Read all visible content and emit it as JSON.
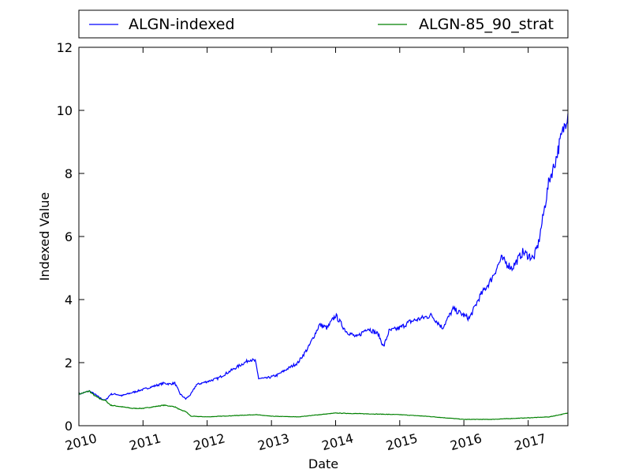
{
  "chart_data": {
    "type": "line",
    "xlabel": "Date",
    "ylabel": "Indexed Value",
    "xlim": [
      "2010-01-01",
      "2017-08-15"
    ],
    "ylim": [
      0,
      12
    ],
    "x_tick_labels": [
      "2010",
      "2011",
      "2012",
      "2013",
      "2014",
      "2015",
      "2016",
      "2017"
    ],
    "y_tick_values": [
      0,
      2,
      4,
      6,
      8,
      10,
      12
    ],
    "legend_position": "top-outside",
    "grid": false,
    "series": [
      {
        "name": "ALGN-indexed",
        "color": "#0000ff",
        "points": [
          [
            "2010-01-01",
            1.0
          ],
          [
            "2010-02-01",
            1.05
          ],
          [
            "2010-03-01",
            1.1
          ],
          [
            "2010-04-01",
            1.0
          ],
          [
            "2010-05-01",
            0.88
          ],
          [
            "2010-06-01",
            0.8
          ],
          [
            "2010-07-01",
            1.0
          ],
          [
            "2010-08-01",
            1.0
          ],
          [
            "2010-09-01",
            0.95
          ],
          [
            "2010-10-01",
            1.0
          ],
          [
            "2010-11-01",
            1.05
          ],
          [
            "2010-12-01",
            1.1
          ],
          [
            "2011-01-01",
            1.15
          ],
          [
            "2011-02-01",
            1.2
          ],
          [
            "2011-03-01",
            1.25
          ],
          [
            "2011-04-01",
            1.3
          ],
          [
            "2011-05-01",
            1.35
          ],
          [
            "2011-06-01",
            1.32
          ],
          [
            "2011-07-01",
            1.35
          ],
          [
            "2011-08-01",
            1.0
          ],
          [
            "2011-09-01",
            0.85
          ],
          [
            "2011-10-01",
            1.0
          ],
          [
            "2011-11-01",
            1.3
          ],
          [
            "2011-12-01",
            1.35
          ],
          [
            "2012-01-01",
            1.4
          ],
          [
            "2012-03-01",
            1.5
          ],
          [
            "2012-05-01",
            1.7
          ],
          [
            "2012-07-01",
            1.9
          ],
          [
            "2012-09-01",
            2.1
          ],
          [
            "2012-10-01",
            2.05
          ],
          [
            "2012-10-20",
            1.5
          ],
          [
            "2012-12-01",
            1.5
          ],
          [
            "2013-02-01",
            1.6
          ],
          [
            "2013-04-01",
            1.8
          ],
          [
            "2013-06-01",
            2.0
          ],
          [
            "2013-08-01",
            2.5
          ],
          [
            "2013-10-01",
            3.2
          ],
          [
            "2013-11-15",
            3.1
          ],
          [
            "2014-01-01",
            3.5
          ],
          [
            "2014-03-01",
            3.0
          ],
          [
            "2014-05-01",
            2.8
          ],
          [
            "2014-07-01",
            3.1
          ],
          [
            "2014-09-01",
            2.9
          ],
          [
            "2014-10-01",
            2.5
          ],
          [
            "2014-11-01",
            3.0
          ],
          [
            "2015-01-01",
            3.1
          ],
          [
            "2015-03-01",
            3.3
          ],
          [
            "2015-05-01",
            3.4
          ],
          [
            "2015-07-01",
            3.5
          ],
          [
            "2015-09-01",
            3.1
          ],
          [
            "2015-11-01",
            3.7
          ],
          [
            "2016-01-01",
            3.5
          ],
          [
            "2016-02-01",
            3.4
          ],
          [
            "2016-04-01",
            4.1
          ],
          [
            "2016-06-01",
            4.6
          ],
          [
            "2016-08-01",
            5.3
          ],
          [
            "2016-10-01",
            5.0
          ],
          [
            "2016-12-01",
            5.5
          ],
          [
            "2017-02-01",
            5.3
          ],
          [
            "2017-03-01",
            5.8
          ],
          [
            "2017-04-01",
            6.8
          ],
          [
            "2017-05-01",
            7.8
          ],
          [
            "2017-06-01",
            8.3
          ],
          [
            "2017-07-01",
            9.0
          ],
          [
            "2017-08-15",
            9.9
          ]
        ]
      },
      {
        "name": "ALGN-85_90_strat",
        "color": "#008000",
        "points": [
          [
            "2010-01-01",
            1.0
          ],
          [
            "2010-02-01",
            1.05
          ],
          [
            "2010-03-01",
            1.1
          ],
          [
            "2010-04-01",
            0.95
          ],
          [
            "2010-05-01",
            0.85
          ],
          [
            "2010-06-01",
            0.8
          ],
          [
            "2010-07-01",
            0.65
          ],
          [
            "2010-09-01",
            0.6
          ],
          [
            "2010-11-01",
            0.55
          ],
          [
            "2011-01-01",
            0.55
          ],
          [
            "2011-03-01",
            0.6
          ],
          [
            "2011-05-01",
            0.65
          ],
          [
            "2011-07-01",
            0.6
          ],
          [
            "2011-08-01",
            0.5
          ],
          [
            "2011-09-01",
            0.45
          ],
          [
            "2011-10-01",
            0.3
          ],
          [
            "2012-01-01",
            0.28
          ],
          [
            "2012-06-01",
            0.32
          ],
          [
            "2012-10-01",
            0.35
          ],
          [
            "2013-01-01",
            0.3
          ],
          [
            "2013-06-01",
            0.28
          ],
          [
            "2013-10-01",
            0.35
          ],
          [
            "2014-01-01",
            0.4
          ],
          [
            "2014-06-01",
            0.38
          ],
          [
            "2015-01-01",
            0.35
          ],
          [
            "2015-06-01",
            0.3
          ],
          [
            "2016-01-01",
            0.2
          ],
          [
            "2016-06-01",
            0.2
          ],
          [
            "2017-01-01",
            0.25
          ],
          [
            "2017-05-01",
            0.28
          ],
          [
            "2017-08-15",
            0.4
          ]
        ]
      }
    ]
  }
}
